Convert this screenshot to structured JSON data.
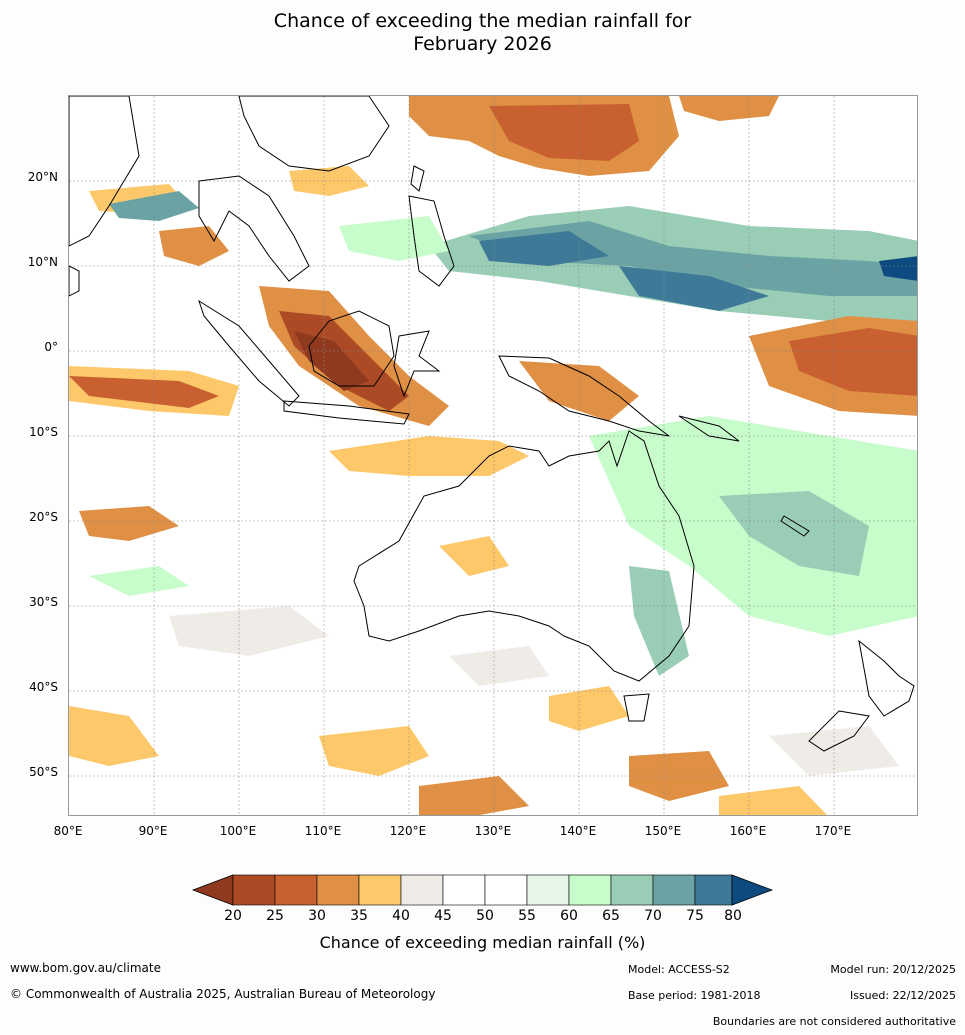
{
  "title_line1": "Chance of exceeding the median rainfall for",
  "title_line2": "February 2026",
  "map": {
    "lat_ticks": [
      "20°N",
      "10°N",
      "0°",
      "10°S",
      "20°S",
      "30°S",
      "40°S",
      "50°S"
    ],
    "lon_ticks": [
      "80°E",
      "90°E",
      "100°E",
      "110°E",
      "120°E",
      "130°E",
      "140°E",
      "150°E",
      "160°E",
      "170°E"
    ]
  },
  "legend": {
    "ticks": [
      "20",
      "25",
      "30",
      "35",
      "40",
      "45",
      "50",
      "55",
      "60",
      "65",
      "70",
      "75",
      "80"
    ],
    "title": "Chance of exceeding median rainfall (%)",
    "colors": {
      "below_20": "#8f3a1f",
      "20_25": "#ab4a25",
      "25_30": "#c8612f",
      "30_35": "#df9044",
      "35_40": "#fdc86a",
      "40_45": "#efebe6",
      "45_50": "#ffffff",
      "50_55": "#ffffff",
      "55_60": "#e8f6ea",
      "60_65": "#c6fdcb",
      "65_70": "#99cdb6",
      "70_75": "#6ba3a4",
      "75_80": "#3e7a97",
      "above_80": "#0c4a7f"
    }
  },
  "footer": {
    "website": "www.bom.gov.au/climate",
    "copyright": "© Commonwealth of Australia 2025, Australian Bureau of Meteorology",
    "model": "Model: ACCESS-S2",
    "base_period": "Base period: 1981-2018",
    "model_run": "Model run: 20/12/2025",
    "issued": "Issued: 22/12/2025",
    "boundaries_note": "Boundaries are not considered authoritative"
  }
}
